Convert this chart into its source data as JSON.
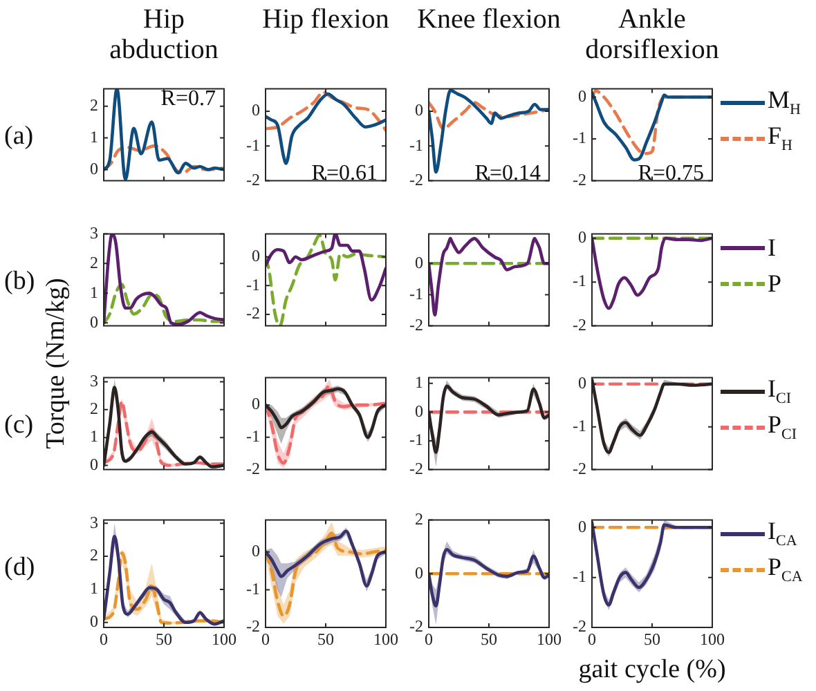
{
  "chart_data": [
    {
      "type": "line",
      "title": "Hip abduction",
      "annotations": [
        "(a)",
        "R=0.7"
      ],
      "xlim": [
        0,
        100
      ],
      "xticks": [
        0,
        50,
        100
      ],
      "ylim": [
        -0.35,
        2.55
      ],
      "yticks": [
        0,
        1,
        2
      ],
      "tick_labels": "y",
      "series": [
        {
          "color": "#0e4d7e",
          "x": [
            0,
            5,
            11,
            18,
            25,
            31,
            40,
            46,
            53,
            62,
            68,
            75,
            80,
            87,
            92,
            100
          ],
          "values": [
            0,
            0.3,
            2.55,
            -0.3,
            1.3,
            0.5,
            1.5,
            0.3,
            0.35,
            -0.1,
            0.2,
            0.05,
            0.1,
            0,
            0.05,
            0
          ]
        },
        {
          "color": "#e8794a",
          "line_style": "dashed",
          "x": [
            0,
            6,
            12,
            20,
            30,
            42,
            52,
            60,
            66,
            75,
            85,
            100
          ],
          "values": [
            0,
            0.2,
            0.6,
            0.7,
            0.6,
            0.75,
            0.5,
            0,
            -0.1,
            0.1,
            0,
            0.05
          ]
        }
      ]
    },
    {
      "type": "line",
      "title": "Hip flexion",
      "annotations": [
        "R=0.61"
      ],
      "xlim": [
        0,
        100
      ],
      "xticks": [
        0,
        50,
        100
      ],
      "ylim": [
        -2,
        0.65
      ],
      "yticks": [
        -2,
        -1,
        0
      ],
      "tick_labels": "y",
      "series": [
        {
          "color": "#0e4d7e",
          "x": [
            0,
            5,
            10,
            15,
            17,
            22,
            28,
            35,
            45,
            52,
            58,
            65,
            75,
            83,
            90,
            100
          ],
          "values": [
            -0.15,
            -0.25,
            -0.4,
            -1.3,
            -1.5,
            -0.7,
            -0.4,
            -0.2,
            0.3,
            0.5,
            0.35,
            0.2,
            -0.2,
            -0.45,
            -0.4,
            -0.25
          ]
        },
        {
          "color": "#e8794a",
          "line_style": "dashed",
          "x": [
            0,
            10,
            20,
            30,
            40,
            48,
            55,
            65,
            75,
            85,
            95,
            100
          ],
          "values": [
            -0.5,
            -0.45,
            -0.2,
            0,
            0.25,
            0.55,
            0.4,
            0.25,
            0.1,
            0.05,
            -0.3,
            -0.55
          ]
        }
      ]
    },
    {
      "type": "line",
      "title": "Knee flexion",
      "annotations": [
        "R=0.14"
      ],
      "xlim": [
        0,
        100
      ],
      "xticks": [
        0,
        50,
        100
      ],
      "ylim": [
        -2,
        0.65
      ],
      "yticks": [
        -2,
        -1,
        0
      ],
      "tick_labels": "y",
      "series": [
        {
          "color": "#0e4d7e",
          "x": [
            0,
            3,
            6,
            10,
            14,
            18,
            24,
            30,
            40,
            48,
            52,
            55,
            60,
            65,
            75,
            83,
            88,
            93,
            100
          ],
          "values": [
            0,
            -0.8,
            -1.75,
            -1,
            0,
            0.6,
            0.5,
            0.4,
            0.1,
            -0.2,
            -0.35,
            -0.05,
            -0.2,
            -0.15,
            -0.05,
            0,
            0.2,
            0.05,
            0.05
          ]
        },
        {
          "color": "#e8794a",
          "line_style": "dashed",
          "x": [
            0,
            5,
            12,
            20,
            30,
            38,
            45,
            55,
            65,
            75,
            85,
            100
          ],
          "values": [
            0.25,
            0,
            -0.5,
            -0.3,
            0,
            0.25,
            0.1,
            -0.1,
            -0.15,
            -0.1,
            -0.05,
            0.05
          ]
        }
      ]
    },
    {
      "type": "line",
      "title": "Ankle dorsiflexion",
      "annotations": [
        "R=0.75"
      ],
      "legend": "right",
      "xlim": [
        0,
        100
      ],
      "xticks": [
        0,
        50,
        100
      ],
      "ylim": [
        -2,
        0.2
      ],
      "yticks": [
        -2,
        -1,
        0
      ],
      "tick_labels": "y",
      "series": [
        {
          "name": "M$_{H}$",
          "color": "#0e4d7e",
          "x": [
            0,
            3,
            10,
            20,
            28,
            35,
            40,
            45,
            52,
            58,
            60,
            63,
            70,
            100
          ],
          "values": [
            0.1,
            -0.1,
            -0.6,
            -0.9,
            -1.2,
            -1.5,
            -1.45,
            -1.1,
            -0.6,
            -0.1,
            0.05,
            0,
            0,
            0
          ]
        },
        {
          "name": "F$_{H}$",
          "color": "#e8794a",
          "line_style": "dashed",
          "x": [
            0,
            3,
            10,
            20,
            30,
            40,
            45,
            50,
            55,
            60,
            100
          ],
          "values": [
            0,
            0.15,
            0,
            -0.4,
            -0.9,
            -1.3,
            -1.35,
            -1.3,
            -0.3,
            0,
            0
          ]
        }
      ]
    },
    {
      "type": "line",
      "annotations": [
        "(b)"
      ],
      "xlim": [
        0,
        100
      ],
      "xticks": [
        0,
        50,
        100
      ],
      "ylim": [
        -0.1,
        3
      ],
      "yticks": [
        0,
        1,
        2,
        3
      ],
      "tick_labels": "y",
      "series": [
        {
          "color": "#5b1f6e",
          "x": [
            0,
            4,
            7,
            10,
            14,
            18,
            22,
            27,
            32,
            38,
            42,
            48,
            52,
            56,
            62,
            70,
            80,
            85,
            92,
            100
          ],
          "values": [
            0,
            2.2,
            3,
            2.7,
            1.2,
            0.5,
            0.5,
            0.8,
            0.95,
            1,
            0.9,
            0.6,
            0.5,
            0,
            -0.05,
            0.05,
            0.35,
            0.25,
            0.15,
            0.1
          ]
        },
        {
          "color": "#7aab2d",
          "line_style": "dashed",
          "x": [
            0,
            5,
            10,
            15,
            20,
            25,
            32,
            40,
            45,
            52,
            60,
            70,
            80,
            90,
            100
          ],
          "values": [
            0,
            0.3,
            1,
            1.3,
            0.7,
            0.3,
            0.5,
            0.95,
            0.9,
            0.2,
            0.05,
            0.1,
            0.1,
            0.05,
            0.05
          ]
        }
      ]
    },
    {
      "type": "line",
      "xlim": [
        0,
        100
      ],
      "xticks": [
        0,
        50,
        100
      ],
      "ylim": [
        -2.4,
        0.8
      ],
      "yticks": [
        -2,
        -1,
        0
      ],
      "tick_labels": "y",
      "series": [
        {
          "color": "#5b1f6e",
          "x": [
            0,
            5,
            10,
            15,
            20,
            25,
            30,
            40,
            50,
            55,
            58,
            62,
            68,
            72,
            78,
            82,
            88,
            95,
            100
          ],
          "values": [
            -0.3,
            0.1,
            0.25,
            0.2,
            -0.2,
            0,
            -0.1,
            0.05,
            0.2,
            0.3,
            0.8,
            0.4,
            0.4,
            0.2,
            0.2,
            -0.4,
            -1.5,
            -1,
            -0.4
          ]
        },
        {
          "color": "#7aab2d",
          "line_style": "dashed",
          "x": [
            0,
            3,
            8,
            12,
            17,
            22,
            28,
            35,
            40,
            45,
            50,
            55,
            58,
            62,
            68,
            75,
            85,
            100
          ],
          "values": [
            0,
            -0.5,
            -2,
            -2.4,
            -1.5,
            -1,
            -0.3,
            0,
            0.4,
            0.75,
            0.1,
            -0.1,
            -0.8,
            0.1,
            0,
            0.1,
            0.05,
            0
          ]
        }
      ]
    },
    {
      "type": "line",
      "xlim": [
        0,
        100
      ],
      "xticks": [
        0,
        50,
        100
      ],
      "ylim": [
        -2,
        0.95
      ],
      "yticks": [
        -2,
        -1,
        0
      ],
      "tick_labels": "y",
      "series": [
        {
          "color": "#5b1f6e",
          "x": [
            0,
            3,
            5,
            8,
            12,
            15,
            17,
            18,
            19,
            22,
            25,
            30,
            38,
            45,
            55,
            60,
            65,
            72,
            82,
            87,
            88,
            89,
            92,
            96,
            100
          ],
          "values": [
            0,
            -1,
            -1.65,
            -0.7,
            0.3,
            0.5,
            0.72,
            0.8,
            0.72,
            0.5,
            0.35,
            0.55,
            0.8,
            0.5,
            0.2,
            0.1,
            -0.2,
            -0.1,
            0,
            0.72,
            0.8,
            0.74,
            0.5,
            0,
            0
          ]
        },
        {
          "color": "#7aab2d",
          "line_style": "dashed",
          "x": [
            0,
            100
          ],
          "values": [
            0,
            0
          ]
        }
      ]
    },
    {
      "type": "line",
      "legend": "right",
      "xlim": [
        0,
        100
      ],
      "xticks": [
        0,
        50,
        100
      ],
      "ylim": [
        -2,
        0.1
      ],
      "yticks": [
        -2,
        -1,
        0
      ],
      "tick_labels": "y",
      "series": [
        {
          "name": "I",
          "color": "#5b1f6e",
          "x": [
            0,
            5,
            10,
            14,
            18,
            22,
            27,
            32,
            38,
            42,
            48,
            55,
            58,
            61,
            70,
            80,
            90,
            100
          ],
          "values": [
            0,
            -0.8,
            -1.4,
            -1.6,
            -1.4,
            -1.05,
            -0.9,
            -1.05,
            -1.3,
            -1.2,
            -0.9,
            -0.7,
            -0.2,
            0,
            -0.03,
            -0.03,
            -0.05,
            0
          ]
        },
        {
          "name": "P",
          "color": "#7aab2d",
          "line_style": "dashed",
          "x": [
            0,
            100
          ],
          "values": [
            0,
            0
          ]
        }
      ]
    },
    {
      "type": "line",
      "ylabel": "Torque (Nm/kg)",
      "annotations": [
        "(c)"
      ],
      "xlim": [
        0,
        100
      ],
      "xticks": [
        0,
        50,
        100
      ],
      "ylim": [
        -0.15,
        3.15
      ],
      "yticks": [
        0,
        1,
        2,
        3
      ],
      "tick_labels": "y",
      "series": [
        {
          "color": "#2b2222",
          "x": [
            0,
            5,
            9,
            12,
            15,
            18,
            22,
            28,
            34,
            40,
            45,
            52,
            60,
            68,
            75,
            80,
            85,
            90,
            100
          ],
          "values": [
            0,
            1.5,
            2.8,
            2,
            0.5,
            0.15,
            0.25,
            0.6,
            1,
            1.2,
            1,
            0.7,
            0.3,
            0.05,
            0.1,
            0.3,
            0.1,
            -0.05,
            0
          ],
          "lower": [
            0,
            1.3,
            2.5,
            1.8,
            0.4,
            0.08,
            0.15,
            0.5,
            0.9,
            1.05,
            0.85,
            0.55,
            0.2,
            0,
            0.05,
            0.22,
            0.05,
            -0.1,
            -0.05
          ],
          "upper": [
            0.05,
            1.7,
            3.1,
            2.2,
            0.6,
            0.22,
            0.35,
            0.7,
            1.1,
            1.35,
            1.15,
            0.85,
            0.4,
            0.1,
            0.15,
            0.38,
            0.15,
            0,
            0.05
          ]
        },
        {
          "color": "#ef6b6b",
          "line_style": "dashed",
          "x": [
            0,
            8,
            12,
            15,
            18,
            22,
            28,
            35,
            40,
            44,
            48,
            55,
            65,
            75,
            90,
            100
          ],
          "values": [
            0.1,
            0.4,
            1.5,
            2.3,
            1.7,
            0.8,
            0.5,
            0.9,
            1.25,
            0.8,
            0.1,
            0,
            0.05,
            0.1,
            0.05,
            0.05
          ],
          "lower": [
            0.05,
            0.3,
            1.2,
            2,
            1.4,
            0.6,
            0.4,
            0.7,
            0.9,
            0.5,
            0.02,
            -0.05,
            0,
            0.05,
            0,
            0
          ],
          "upper": [
            0.15,
            0.5,
            1.8,
            2.4,
            2,
            1,
            0.6,
            1.1,
            1.7,
            1.1,
            0.2,
            0.05,
            0.1,
            0.15,
            0.1,
            0.1
          ]
        }
      ]
    },
    {
      "type": "line",
      "xlim": [
        0,
        100
      ],
      "xticks": [
        0,
        50,
        100
      ],
      "ylim": [
        -2,
        0.85
      ],
      "yticks": [
        -2,
        -1,
        0
      ],
      "tick_labels": "y",
      "series": [
        {
          "color": "#2b2222",
          "x": [
            0,
            5,
            10,
            13,
            17,
            22,
            30,
            40,
            48,
            55,
            60,
            66,
            72,
            78,
            85,
            88,
            93,
            100
          ],
          "values": [
            0,
            -0.2,
            -0.5,
            -0.7,
            -0.6,
            -0.35,
            -0.2,
            0.1,
            0.4,
            0.45,
            0.5,
            0.4,
            0,
            -0.3,
            -1,
            -0.8,
            -0.2,
            0
          ],
          "lower": [
            -0.1,
            -0.4,
            -0.9,
            -1.2,
            -0.8,
            -0.45,
            -0.3,
            0,
            0.3,
            0.35,
            0.4,
            0.3,
            -0.1,
            -0.4,
            -1.15,
            -0.95,
            -0.3,
            -0.05
          ],
          "upper": [
            0.05,
            0,
            -0.2,
            -0.4,
            -0.4,
            -0.25,
            -0.1,
            0.2,
            0.5,
            0.55,
            0.6,
            0.5,
            0.1,
            -0.2,
            -0.85,
            -0.65,
            -0.1,
            0.05
          ]
        },
        {
          "color": "#ef6b6b",
          "line_style": "dashed",
          "x": [
            0,
            5,
            10,
            15,
            20,
            25,
            32,
            40,
            48,
            53,
            58,
            65,
            75,
            85,
            100
          ],
          "values": [
            0,
            -0.6,
            -1.5,
            -1.8,
            -1.3,
            -0.4,
            -0.2,
            0.1,
            0.3,
            0.6,
            0.1,
            -0.05,
            0,
            0,
            0.05
          ],
          "lower": [
            -0.1,
            -0.9,
            -1.8,
            -1.95,
            -1.6,
            -0.6,
            -0.35,
            -0.05,
            0.15,
            0.3,
            -0.05,
            -0.15,
            -0.1,
            -0.05,
            0
          ],
          "upper": [
            0.05,
            -0.3,
            -1.1,
            -1.5,
            -1,
            -0.2,
            -0.05,
            0.25,
            0.5,
            0.8,
            0.25,
            0.05,
            0.05,
            0.05,
            0.1
          ]
        }
      ]
    },
    {
      "type": "line",
      "xlim": [
        0,
        100
      ],
      "xticks": [
        0,
        50,
        100
      ],
      "ylim": [
        -2,
        1.2
      ],
      "yticks": [
        -2,
        -1,
        0,
        1
      ],
      "tick_labels": "y",
      "series": [
        {
          "color": "#2b2222",
          "x": [
            0,
            3,
            6,
            9,
            12,
            15,
            20,
            28,
            38,
            48,
            58,
            65,
            75,
            82,
            87,
            92,
            96,
            100
          ],
          "values": [
            0,
            -0.8,
            -1.4,
            -0.6,
            0.5,
            0.9,
            0.7,
            0.5,
            0.45,
            0.2,
            -0.1,
            -0.05,
            0,
            0.05,
            0.8,
            0.3,
            -0.2,
            -0.1
          ],
          "lower": [
            -0.1,
            -1.1,
            -1.9,
            -0.9,
            0.3,
            0.8,
            0.6,
            0.4,
            0.35,
            0.1,
            -0.2,
            -0.15,
            -0.05,
            0,
            0.6,
            0.2,
            -0.3,
            -0.2
          ],
          "upper": [
            0.1,
            -0.5,
            -1,
            -0.3,
            0.7,
            1.1,
            0.8,
            0.6,
            0.55,
            0.3,
            0,
            0.05,
            0.05,
            0.1,
            1,
            0.4,
            -0.1,
            0
          ]
        },
        {
          "color": "#ef6b6b",
          "line_style": "dashed",
          "x": [
            0,
            100
          ],
          "values": [
            0,
            0
          ]
        }
      ]
    },
    {
      "type": "line",
      "legend": "right",
      "xlim": [
        0,
        100
      ],
      "xticks": [
        0,
        50,
        100
      ],
      "ylim": [
        -2,
        0.15
      ],
      "yticks": [
        -2,
        -1,
        0
      ],
      "tick_labels": "y",
      "series": [
        {
          "name": "I$_{CI}$",
          "color": "#2b2222",
          "x": [
            0,
            4,
            10,
            14,
            18,
            23,
            28,
            33,
            40,
            45,
            52,
            57,
            60,
            70,
            85,
            100
          ],
          "values": [
            0.1,
            -0.5,
            -1.4,
            -1.6,
            -1.35,
            -1,
            -0.9,
            -1.05,
            -1.2,
            -1,
            -0.6,
            -0.2,
            0,
            0,
            -0.03,
            0
          ],
          "lower": [
            0,
            -0.65,
            -1.5,
            -1.7,
            -1.45,
            -1.1,
            -1,
            -1.15,
            -1.3,
            -1.1,
            -0.7,
            -0.3,
            -0.05,
            -0.03,
            -0.06,
            -0.03
          ],
          "upper": [
            0.15,
            -0.35,
            -1.3,
            -1.5,
            -1.25,
            -0.9,
            -0.8,
            -0.95,
            -1.1,
            -0.9,
            -0.5,
            -0.1,
            0.1,
            0.03,
            0,
            0.03
          ]
        },
        {
          "name": "P$_{CI}$",
          "color": "#ef6b6b",
          "line_style": "dashed",
          "x": [
            0,
            100
          ],
          "values": [
            0,
            0
          ]
        }
      ]
    },
    {
      "type": "line",
      "annotations": [
        "(d)"
      ],
      "xlim": [
        0,
        100
      ],
      "xticks": [
        0,
        50,
        100
      ],
      "ylim": [
        -0.15,
        3.1
      ],
      "yticks": [
        0,
        1,
        2,
        3
      ],
      "series": [
        {
          "color": "#3a336b",
          "x": [
            0,
            5,
            9,
            12,
            16,
            20,
            26,
            32,
            38,
            44,
            50,
            55,
            60,
            68,
            75,
            80,
            85,
            92,
            100
          ],
          "values": [
            0.1,
            1.5,
            2.6,
            2,
            0.5,
            0.25,
            0.5,
            0.8,
            1.05,
            1,
            0.7,
            0.6,
            0.3,
            0,
            0.05,
            0.3,
            0.1,
            -0.05,
            0.05
          ],
          "lower": [
            0.05,
            1.3,
            2.3,
            1.8,
            0.4,
            0.15,
            0.4,
            0.7,
            0.95,
            0.9,
            0.55,
            0.4,
            0.2,
            -0.05,
            0,
            0.22,
            0.05,
            -0.1,
            0
          ],
          "upper": [
            0.15,
            1.7,
            3,
            2.2,
            0.6,
            0.35,
            0.6,
            0.9,
            1.15,
            1.1,
            0.85,
            0.8,
            0.4,
            0.05,
            0.1,
            0.38,
            0.15,
            0,
            0.1
          ]
        },
        {
          "color": "#e8962e",
          "line_style": "dashed",
          "x": [
            0,
            8,
            12,
            15,
            18,
            22,
            28,
            35,
            40,
            44,
            48,
            55,
            65,
            75,
            90,
            100
          ],
          "values": [
            0.1,
            0.3,
            1.2,
            2.1,
            1.8,
            0.6,
            0.4,
            0.7,
            1.1,
            0.6,
            0,
            -0.02,
            0,
            0.05,
            0.05,
            0
          ],
          "lower": [
            0.05,
            0.2,
            0.9,
            1.8,
            1.4,
            0.3,
            0.2,
            0.5,
            0.8,
            0.3,
            -0.05,
            -0.05,
            -0.03,
            0,
            0,
            -0.03
          ],
          "upper": [
            0.15,
            0.45,
            1.6,
            2.2,
            2.1,
            1,
            0.6,
            1.1,
            1.8,
            1,
            0.1,
            0.03,
            0.03,
            0.1,
            0.1,
            0.03
          ]
        }
      ]
    },
    {
      "type": "line",
      "xlim": [
        0,
        100
      ],
      "xticks": [
        0,
        50,
        100
      ],
      "ylim": [
        -2,
        0.85
      ],
      "yticks": [
        -2,
        -1,
        0
      ],
      "series": [
        {
          "color": "#3a336b",
          "x": [
            0,
            5,
            10,
            13,
            18,
            25,
            35,
            45,
            55,
            62,
            67,
            72,
            78,
            84,
            88,
            93,
            100
          ],
          "values": [
            0,
            -0.2,
            -0.5,
            -0.65,
            -0.5,
            -0.35,
            -0.1,
            0.2,
            0.35,
            0.4,
            0.55,
            0.2,
            -0.3,
            -0.9,
            -0.6,
            -0.1,
            0
          ],
          "lower": [
            -0.1,
            -0.5,
            -1,
            -1.2,
            -0.7,
            -0.45,
            -0.2,
            0.1,
            0.25,
            0.3,
            0.45,
            0.1,
            -0.4,
            -1.05,
            -0.75,
            -0.2,
            -0.05
          ],
          "upper": [
            0.05,
            0.1,
            -0.1,
            -0.3,
            -0.3,
            -0.25,
            0,
            0.3,
            0.45,
            0.5,
            0.65,
            0.3,
            -0.2,
            -0.75,
            -0.45,
            0,
            0.05
          ]
        },
        {
          "color": "#e8962e",
          "line_style": "dashed",
          "x": [
            0,
            5,
            10,
            15,
            20,
            25,
            32,
            42,
            50,
            55,
            60,
            70,
            80,
            90,
            100
          ],
          "values": [
            0,
            -0.5,
            -1.3,
            -1.7,
            -1.4,
            -0.5,
            -0.2,
            0,
            0.3,
            0.5,
            0.1,
            0,
            -0.05,
            0,
            0.05
          ],
          "lower": [
            -0.15,
            -0.9,
            -1.7,
            -1.9,
            -1.7,
            -0.8,
            -0.4,
            -0.15,
            0.1,
            0.2,
            -0.1,
            -0.1,
            -0.15,
            -0.1,
            -0.05
          ],
          "upper": [
            0.1,
            -0.2,
            -0.9,
            -1.4,
            -1,
            -0.2,
            0,
            0.15,
            0.5,
            0.8,
            0.3,
            0.1,
            0.05,
            0.1,
            0.15
          ]
        }
      ]
    },
    {
      "type": "line",
      "xlim": [
        0,
        100
      ],
      "xticks": [
        0,
        50,
        100
      ],
      "ylim": [
        -2,
        2
      ],
      "yticks": [
        -2,
        0,
        2
      ],
      "series": [
        {
          "color": "#3a336b",
          "x": [
            0,
            3,
            6,
            9,
            12,
            15,
            20,
            28,
            38,
            48,
            58,
            65,
            75,
            82,
            87,
            92,
            96,
            100
          ],
          "values": [
            0,
            -0.8,
            -1.2,
            -0.4,
            0.6,
            0.9,
            0.7,
            0.6,
            0.5,
            0.2,
            -0.05,
            -0.1,
            0.05,
            0.1,
            0.65,
            0.2,
            -0.15,
            -0.05
          ],
          "lower": [
            -0.1,
            -1.2,
            -1.9,
            -0.8,
            0.3,
            0.75,
            0.6,
            0.5,
            0.4,
            0.1,
            -0.15,
            -0.2,
            0,
            0.05,
            0.4,
            0.1,
            -0.25,
            -0.15
          ],
          "upper": [
            0.1,
            -0.4,
            -0.6,
            0,
            0.8,
            1.2,
            0.85,
            0.7,
            0.65,
            0.3,
            0.05,
            0,
            0.1,
            0.2,
            0.9,
            0.3,
            -0.05,
            0.05
          ]
        },
        {
          "color": "#e8962e",
          "line_style": "dashed",
          "x": [
            0,
            100
          ],
          "values": [
            0,
            0
          ]
        }
      ]
    },
    {
      "type": "line",
      "legend": "right",
      "xlabel": "gait cycle (%)",
      "xlim": [
        0,
        100
      ],
      "xticks": [
        0,
        50,
        100
      ],
      "ylim": [
        -2,
        0.15
      ],
      "yticks": [
        -2,
        -1,
        0
      ],
      "series": [
        {
          "name": "I$_{CA}$",
          "color": "#3a336b",
          "x": [
            0,
            4,
            10,
            14,
            18,
            23,
            28,
            33,
            39,
            45,
            52,
            57,
            60,
            70,
            85,
            100
          ],
          "values": [
            0.1,
            -0.5,
            -1.35,
            -1.55,
            -1.3,
            -1,
            -0.9,
            -1.05,
            -1.2,
            -1.05,
            -0.7,
            -0.3,
            0.05,
            0,
            0,
            0
          ],
          "lower": [
            0,
            -0.65,
            -1.45,
            -1.65,
            -1.4,
            -1.1,
            -1,
            -1.15,
            -1.3,
            -1.15,
            -0.85,
            -0.45,
            -0.05,
            -0.03,
            -0.03,
            -0.03
          ],
          "upper": [
            0.15,
            -0.35,
            -1.25,
            -1.45,
            -1.2,
            -0.9,
            -0.8,
            -0.95,
            -1.1,
            -0.95,
            -0.55,
            -0.15,
            0.15,
            0.03,
            0.03,
            0.03
          ]
        },
        {
          "name": "P$_{CA}$",
          "color": "#e8962e",
          "line_style": "dashed",
          "x": [
            0,
            100
          ],
          "values": [
            0,
            0
          ]
        }
      ]
    }
  ]
}
